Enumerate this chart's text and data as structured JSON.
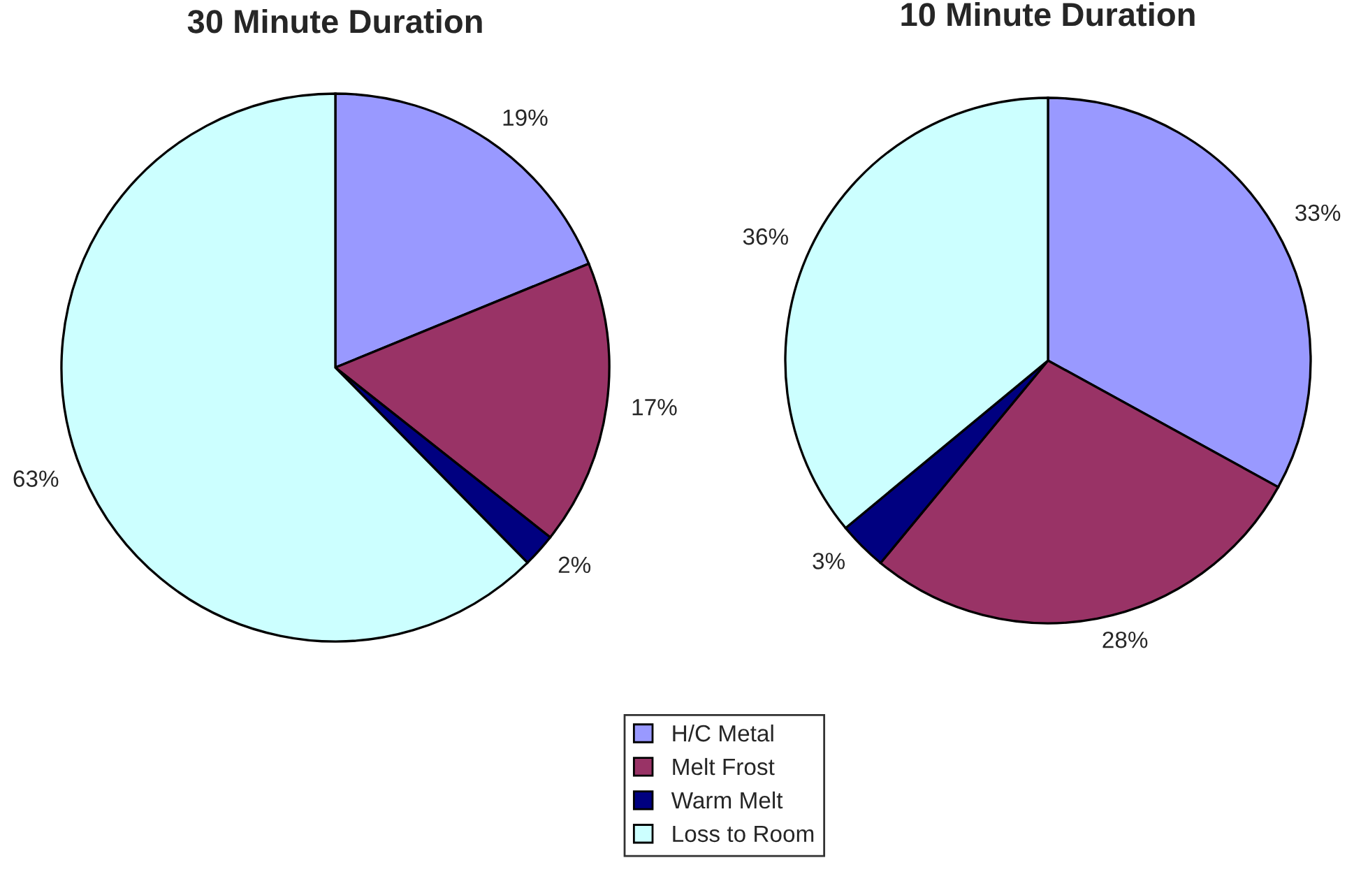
{
  "chart_data": [
    {
      "type": "pie",
      "title": "30 Minute Duration",
      "categories": [
        "H/C Metal",
        "Melt Frost",
        "Warm Melt",
        "Loss to Room"
      ],
      "values": [
        19,
        17,
        2,
        63
      ],
      "value_labels": [
        "19%",
        "17%",
        "2%",
        "63%"
      ],
      "colors": [
        "#9999ff",
        "#993366",
        "#000080",
        "#ccffff"
      ],
      "legend": "bottom"
    },
    {
      "type": "pie",
      "title": "10 Minute Duration",
      "categories": [
        null,
        null,
        null,
        null
      ],
      "values": [
        33,
        28,
        3,
        36
      ],
      "value_labels": [
        "33%",
        "28%",
        "3%",
        "36%"
      ],
      "colors": [
        "#9999ff",
        "#993366",
        "#000080",
        "#ccffff"
      ]
    }
  ]
}
